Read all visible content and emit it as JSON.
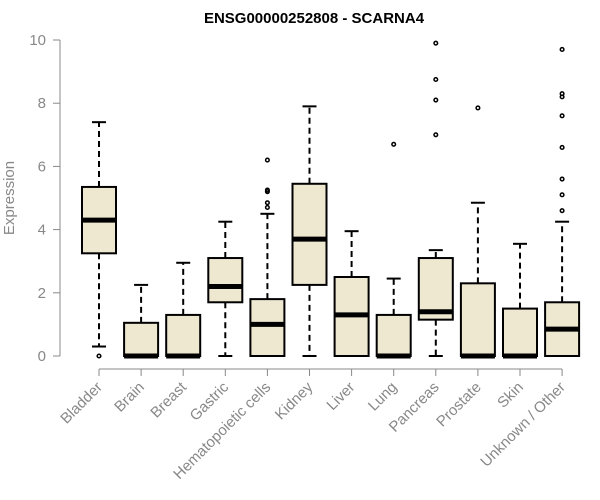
{
  "chart_data": {
    "type": "boxplot",
    "title": "ENSG00000252808 - SCARNA4",
    "xlabel": "",
    "ylabel": "Expression",
    "ylim": [
      0,
      10
    ],
    "yticks": [
      0,
      2,
      4,
      6,
      8,
      10
    ],
    "grid": false,
    "box_fill": "#efe8d0",
    "box_stroke": "#000000",
    "axis_color": "#888888",
    "categories": [
      "Bladder",
      "Brain",
      "Breast",
      "Gastric",
      "Hematopoietic cells",
      "Kidney",
      "Liver",
      "Lung",
      "Pancreas",
      "Prostate",
      "Skin",
      "Unknown / Other"
    ],
    "boxes": [
      {
        "whisker_low": 0.3,
        "q1": 3.25,
        "median": 4.3,
        "q3": 5.35,
        "whisker_high": 7.4,
        "outliers": [
          0.0
        ]
      },
      {
        "whisker_low": 0.0,
        "q1": 0.0,
        "median": 0.0,
        "q3": 1.05,
        "whisker_high": 2.25,
        "outliers": []
      },
      {
        "whisker_low": 0.0,
        "q1": 0.0,
        "median": 0.0,
        "q3": 1.3,
        "whisker_high": 2.95,
        "outliers": []
      },
      {
        "whisker_low": 0.0,
        "q1": 1.7,
        "median": 2.2,
        "q3": 3.1,
        "whisker_high": 4.25,
        "outliers": []
      },
      {
        "whisker_low": 0.0,
        "q1": 0.0,
        "median": 1.0,
        "q3": 1.8,
        "whisker_high": 4.5,
        "outliers": [
          4.7,
          4.85,
          5.2,
          5.25,
          6.2
        ]
      },
      {
        "whisker_low": 0.0,
        "q1": 2.25,
        "median": 3.7,
        "q3": 5.45,
        "whisker_high": 7.9,
        "outliers": []
      },
      {
        "whisker_low": 0.0,
        "q1": 0.0,
        "median": 1.3,
        "q3": 2.5,
        "whisker_high": 3.95,
        "outliers": []
      },
      {
        "whisker_low": 0.0,
        "q1": 0.0,
        "median": 0.0,
        "q3": 1.3,
        "whisker_high": 2.45,
        "outliers": [
          6.7
        ]
      },
      {
        "whisker_low": 0.0,
        "q1": 1.15,
        "median": 1.4,
        "q3": 3.1,
        "whisker_high": 3.35,
        "outliers": [
          7.0,
          8.1,
          8.75,
          9.9
        ]
      },
      {
        "whisker_low": 0.0,
        "q1": 0.0,
        "median": 0.0,
        "q3": 2.3,
        "whisker_high": 4.85,
        "outliers": [
          7.85
        ]
      },
      {
        "whisker_low": 0.0,
        "q1": 0.0,
        "median": 0.0,
        "q3": 1.5,
        "whisker_high": 3.55,
        "outliers": []
      },
      {
        "whisker_low": 0.0,
        "q1": 0.0,
        "median": 0.85,
        "q3": 1.7,
        "whisker_high": 4.25,
        "outliers": [
          4.6,
          5.1,
          5.6,
          6.6,
          7.6,
          8.2,
          8.3,
          9.7
        ]
      }
    ]
  }
}
